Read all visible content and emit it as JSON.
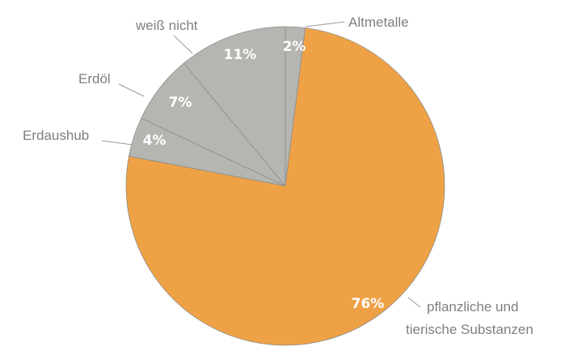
{
  "chart_data": {
    "type": "pie",
    "title": "",
    "start_angle_deg": 0,
    "direction": "clockwise",
    "slices": [
      {
        "category": "Altmetalle",
        "value": 2,
        "label": "2%",
        "color": "#b5b5b1"
      },
      {
        "category_lines": [
          "pflanzliche und",
          "tierische Substanzen"
        ],
        "value": 76,
        "label": "76%",
        "color": "#eea245"
      },
      {
        "category": "Erdaushub",
        "value": 4,
        "label": "4%",
        "color": "#b5b5b1"
      },
      {
        "category": "Erdöl",
        "value": 7,
        "label": "7%",
        "color": "#b5b5b1"
      },
      {
        "category": "weiß nicht",
        "value": 11,
        "label": "11%",
        "color": "#b5b5b1"
      }
    ],
    "legend": "none"
  }
}
